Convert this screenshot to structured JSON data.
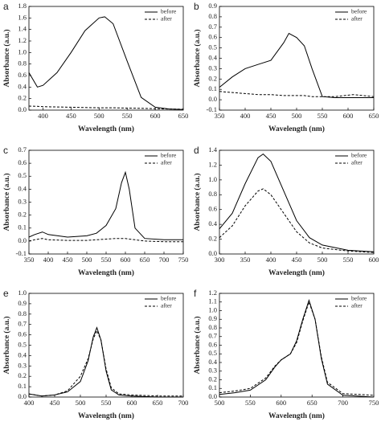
{
  "chart_data": [
    {
      "type": "line",
      "title": "a",
      "x_label": "Wavelength (nm)",
      "y_label": "Absorbance (a.u.)",
      "x": [
        375,
        390,
        400,
        425,
        450,
        475,
        500,
        510,
        525,
        550,
        575,
        600,
        625,
        650
      ],
      "series": [
        {
          "name": "before",
          "color": "#000",
          "linestyle": "solid",
          "values": [
            0.65,
            0.4,
            0.43,
            0.65,
            1.0,
            1.38,
            1.6,
            1.62,
            1.5,
            0.85,
            0.22,
            0.05,
            0.02,
            0.01
          ]
        },
        {
          "name": "after",
          "color": "#000",
          "linestyle": "dashed",
          "values": [
            0.07,
            0.065,
            0.06,
            0.055,
            0.05,
            0.045,
            0.04,
            0.04,
            0.04,
            0.035,
            0.03,
            0.025,
            0.02,
            0.015
          ]
        }
      ],
      "xlim": [
        375,
        650
      ],
      "xticks": [
        400,
        450,
        500,
        550,
        600,
        650
      ],
      "ylim": [
        0,
        1.8
      ],
      "yticks": [
        {
          "value": 0,
          "label": "0.0"
        },
        0.2,
        0.4,
        0.6,
        0.8,
        {
          "value": 1,
          "label": "1.0"
        },
        1.2,
        1.4,
        1.6,
        1.8
      ],
      "legend": "upper right"
    },
    {
      "type": "line",
      "title": "b",
      "x_label": "Wavelength (nm)",
      "y_label": "Absorbance (a.u.)",
      "x": [
        350,
        375,
        400,
        425,
        450,
        475,
        485,
        500,
        515,
        530,
        550,
        575,
        610,
        650
      ],
      "series": [
        {
          "name": "before",
          "color": "#000",
          "linestyle": "solid",
          "values": [
            0.12,
            0.22,
            0.3,
            0.34,
            0.38,
            0.55,
            0.64,
            0.6,
            0.52,
            0.3,
            0.03,
            0.02,
            0.02,
            0.02
          ]
        },
        {
          "name": "after",
          "color": "#000",
          "linestyle": "dashed",
          "values": [
            0.08,
            0.07,
            0.06,
            0.05,
            0.05,
            0.04,
            0.04,
            0.04,
            0.04,
            0.03,
            0.03,
            0.03,
            0.05,
            0.03
          ]
        }
      ],
      "xlim": [
        350,
        650
      ],
      "xticks": [
        350,
        400,
        450,
        500,
        550,
        600,
        650
      ],
      "ylim": [
        -0.1,
        0.9
      ],
      "yticks": [
        -0.1,
        {
          "value": 0,
          "label": "0.0"
        },
        0.1,
        0.2,
        0.3,
        0.4,
        0.5,
        0.6,
        0.7,
        0.8,
        0.9
      ],
      "legend": "upper right"
    },
    {
      "type": "line",
      "title": "c",
      "x_label": "Wavelength (nm)",
      "y_label": "Absorbance (a.u.)",
      "x": [
        350,
        365,
        385,
        400,
        450,
        500,
        525,
        550,
        575,
        590,
        600,
        610,
        625,
        650,
        700,
        750
      ],
      "series": [
        {
          "name": "before",
          "color": "#000",
          "linestyle": "solid",
          "values": [
            0.03,
            0.05,
            0.07,
            0.05,
            0.03,
            0.04,
            0.06,
            0.12,
            0.25,
            0.45,
            0.53,
            0.4,
            0.1,
            0.02,
            0.01,
            0.01
          ]
        },
        {
          "name": "after",
          "color": "#000",
          "linestyle": "dashed",
          "values": [
            0.0,
            0.01,
            0.02,
            0.01,
            0.005,
            0.005,
            0.01,
            0.015,
            0.02,
            0.02,
            0.02,
            0.015,
            0.01,
            0.0,
            -0.005,
            -0.005
          ]
        }
      ],
      "xlim": [
        350,
        750
      ],
      "xticks": [
        350,
        400,
        450,
        500,
        550,
        600,
        650,
        700,
        750
      ],
      "ylim": [
        -0.1,
        0.7
      ],
      "yticks": [
        -0.1,
        {
          "value": 0,
          "label": "0.0"
        },
        0.1,
        0.2,
        0.3,
        0.4,
        0.5,
        0.6,
        0.7
      ],
      "legend": "upper right"
    },
    {
      "type": "line",
      "title": "d",
      "x_label": "Wavelength (nm)",
      "y_label": "Absorbance (a.u.)",
      "x": [
        300,
        325,
        350,
        375,
        385,
        400,
        425,
        450,
        475,
        500,
        550,
        600
      ],
      "series": [
        {
          "name": "before",
          "color": "#000",
          "linestyle": "solid",
          "values": [
            0.34,
            0.55,
            0.95,
            1.3,
            1.35,
            1.25,
            0.85,
            0.45,
            0.22,
            0.12,
            0.05,
            0.03
          ]
        },
        {
          "name": "after",
          "color": "#000",
          "linestyle": "dashed",
          "values": [
            0.22,
            0.38,
            0.65,
            0.85,
            0.88,
            0.8,
            0.55,
            0.3,
            0.15,
            0.08,
            0.04,
            0.02
          ]
        }
      ],
      "xlim": [
        300,
        600
      ],
      "xticks": [
        300,
        350,
        400,
        450,
        500,
        550,
        600
      ],
      "ylim": [
        0,
        1.4
      ],
      "yticks": [
        {
          "value": 0,
          "label": "0.0"
        },
        0.2,
        0.4,
        0.6,
        0.8,
        {
          "value": 1,
          "label": "1.0"
        },
        1.2,
        1.4
      ],
      "legend": "upper right"
    },
    {
      "type": "line",
      "title": "e",
      "x_label": "Wavelength (nm)",
      "y_label": "Absorbance (a.u.)",
      "x": [
        400,
        425,
        450,
        475,
        500,
        515,
        525,
        532,
        540,
        550,
        560,
        575,
        600,
        650,
        700
      ],
      "series": [
        {
          "name": "before",
          "color": "#000",
          "linestyle": "solid",
          "values": [
            0.03,
            0.01,
            0.02,
            0.05,
            0.15,
            0.35,
            0.58,
            0.67,
            0.55,
            0.25,
            0.07,
            0.02,
            0.01,
            0.0,
            0.0
          ]
        },
        {
          "name": "after",
          "color": "#000",
          "linestyle": "dashed",
          "values": [
            0.03,
            0.01,
            0.02,
            0.06,
            0.2,
            0.37,
            0.56,
            0.64,
            0.55,
            0.27,
            0.09,
            0.03,
            0.02,
            0.01,
            0.01
          ]
        }
      ],
      "xlim": [
        400,
        700
      ],
      "xticks": [
        400,
        450,
        500,
        550,
        600,
        650,
        700
      ],
      "ylim": [
        0,
        1.0
      ],
      "yticks": [
        {
          "value": 0,
          "label": "0.0"
        },
        0.1,
        0.2,
        0.3,
        0.4,
        0.5,
        0.6,
        0.7,
        0.8,
        0.9,
        {
          "value": 1,
          "label": "1.0"
        }
      ],
      "legend": "upper right"
    },
    {
      "type": "line",
      "title": "f",
      "x_label": "Wavelength (nm)",
      "y_label": "Absorbance (a.u.)",
      "x": [
        500,
        525,
        550,
        575,
        590,
        600,
        615,
        625,
        635,
        645,
        655,
        665,
        675,
        700,
        750
      ],
      "series": [
        {
          "name": "before",
          "color": "#000",
          "linestyle": "solid",
          "values": [
            0.03,
            0.05,
            0.08,
            0.2,
            0.35,
            0.43,
            0.5,
            0.65,
            0.9,
            1.12,
            0.9,
            0.45,
            0.15,
            0.02,
            0.0
          ]
        },
        {
          "name": "after",
          "color": "#000",
          "linestyle": "dashed",
          "values": [
            0.05,
            0.07,
            0.1,
            0.22,
            0.36,
            0.43,
            0.5,
            0.63,
            0.88,
            1.1,
            0.9,
            0.47,
            0.17,
            0.04,
            0.02
          ]
        }
      ],
      "xlim": [
        500,
        750
      ],
      "xticks": [
        500,
        550,
        600,
        650,
        700,
        750
      ],
      "ylim": [
        0,
        1.2
      ],
      "yticks": [
        {
          "value": 0,
          "label": "0.0"
        },
        0.1,
        0.2,
        0.3,
        0.4,
        0.5,
        0.6,
        0.7,
        0.8,
        0.9,
        {
          "value": 1,
          "label": "1.0"
        },
        1.1,
        1.2
      ],
      "legend": "upper right"
    }
  ]
}
